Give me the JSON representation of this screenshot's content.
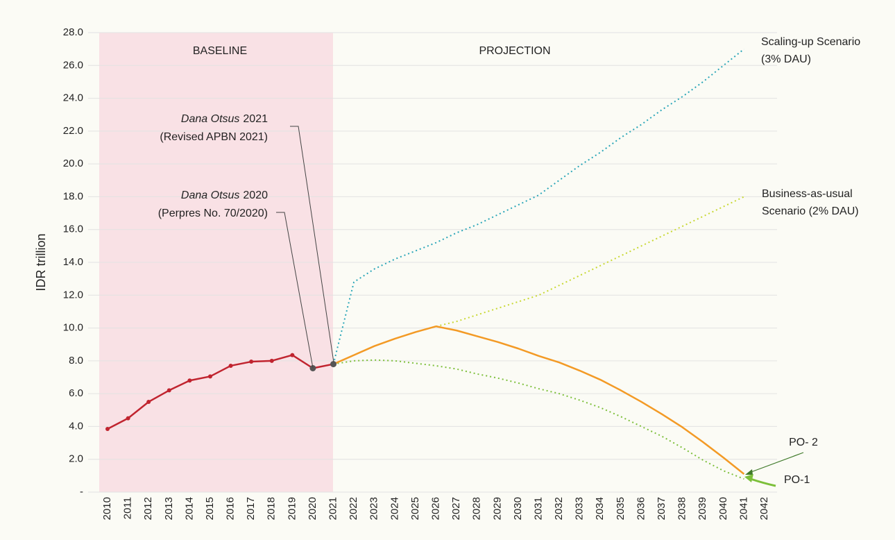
{
  "chart_data": {
    "type": "line",
    "y_label": "IDR trillion",
    "categories": [
      "2010",
      "2011",
      "2012",
      "2013",
      "2014",
      "2015",
      "2016",
      "2017",
      "2018",
      "2019",
      "2020",
      "2021",
      "2022",
      "2023",
      "2024",
      "2025",
      "2026",
      "2027",
      "2028",
      "2029",
      "2030",
      "2031",
      "2032",
      "2033",
      "2034",
      "2035",
      "2036",
      "2037",
      "2038",
      "2039",
      "2040",
      "2041",
      "2042"
    ],
    "ylim": [
      0,
      28
    ],
    "yticks": [
      {
        "value": 0,
        "label": "-"
      },
      {
        "value": 2,
        "label": "2.0"
      },
      {
        "value": 4,
        "label": "4.0"
      },
      {
        "value": 6,
        "label": "6.0"
      },
      {
        "value": 8,
        "label": "8.0"
      },
      {
        "value": 10,
        "label": "10.0"
      },
      {
        "value": 12,
        "label": "12.0"
      },
      {
        "value": 14,
        "label": "14.0"
      },
      {
        "value": 16,
        "label": "16.0"
      },
      {
        "value": 18,
        "label": "18.0"
      },
      {
        "value": 20,
        "label": "20.0"
      },
      {
        "value": 22,
        "label": "22.0"
      },
      {
        "value": 24,
        "label": "24.0"
      },
      {
        "value": 26,
        "label": "26.0"
      },
      {
        "value": 28,
        "label": "28.0"
      }
    ],
    "grid": true,
    "series": [
      {
        "color": "#c0242f",
        "dotted": false,
        "markers": true,
        "values": [
          3.85,
          4.5,
          5.5,
          6.2,
          6.8,
          7.05,
          7.7,
          7.95,
          8.0,
          8.35,
          7.55,
          7.8,
          null,
          null,
          null,
          null,
          null,
          null,
          null,
          null,
          null,
          null,
          null,
          null,
          null,
          null,
          null,
          null,
          null,
          null,
          null,
          null,
          null
        ]
      },
      {
        "color": "#2aa6b8",
        "dotted": true,
        "markers": false,
        "values": [
          null,
          null,
          null,
          null,
          null,
          null,
          null,
          null,
          null,
          null,
          null,
          7.8,
          12.8,
          13.6,
          14.2,
          14.7,
          15.2,
          15.8,
          16.3,
          16.9,
          17.5,
          18.1,
          19.0,
          19.9,
          20.7,
          21.6,
          22.4,
          23.3,
          24.1,
          25.0,
          26.0,
          27.0,
          null
        ]
      },
      {
        "color": "#c8d832",
        "dotted": true,
        "markers": false,
        "values": [
          null,
          null,
          null,
          null,
          null,
          null,
          null,
          null,
          null,
          null,
          null,
          null,
          null,
          null,
          null,
          null,
          10.1,
          10.4,
          10.8,
          11.2,
          11.6,
          12.0,
          12.6,
          13.2,
          13.8,
          14.4,
          15.0,
          15.6,
          16.2,
          16.8,
          17.4,
          18.0,
          null
        ]
      },
      {
        "color": "#7cbf3a",
        "dotted": true,
        "markers": false,
        "values": [
          null,
          null,
          null,
          null,
          null,
          null,
          null,
          null,
          null,
          null,
          null,
          7.8,
          8.0,
          8.05,
          8.0,
          7.85,
          7.7,
          7.5,
          7.2,
          6.95,
          6.65,
          6.3,
          6.0,
          5.6,
          5.15,
          4.6,
          4.0,
          3.4,
          2.7,
          1.95,
          1.3,
          0.8,
          null
        ]
      },
      {
        "color": "#f39a25",
        "dotted": false,
        "markers": false,
        "values": [
          null,
          null,
          null,
          null,
          null,
          null,
          null,
          null,
          null,
          null,
          null,
          7.8,
          8.35,
          8.9,
          9.35,
          9.75,
          10.1,
          9.85,
          9.5,
          9.15,
          8.75,
          8.3,
          7.9,
          7.4,
          6.85,
          6.2,
          5.5,
          4.75,
          3.95,
          3.05,
          2.1,
          1.1,
          null
        ]
      }
    ],
    "annotations": [
      {
        "text": "BASELINE"
      },
      {
        "text": "PROJECTION"
      },
      {
        "text": "Scaling-up Scenario"
      },
      {
        "text": "(3% DAU)"
      },
      {
        "text": "Business-as-usual"
      },
      {
        "text": "Scenario (2% DAU)"
      },
      {
        "italic": "Dana Otsus",
        "text": "2021"
      },
      {
        "text": "(Revised APBN 2021)"
      },
      {
        "italic": "Dana Otsus",
        "text": "2020"
      },
      {
        "text": "(Perpres No. 70/2020)"
      },
      {
        "text": "PO- 2"
      },
      {
        "text": "PO-1"
      }
    ]
  }
}
